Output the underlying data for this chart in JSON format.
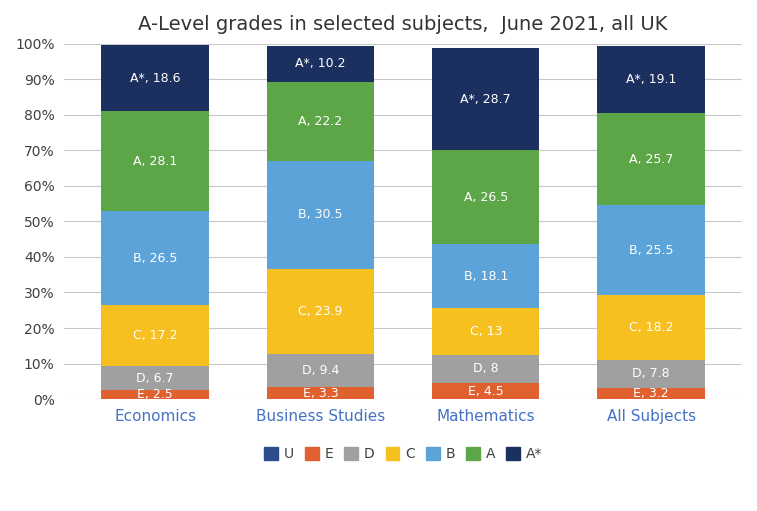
{
  "title": "A-Level grades in selected subjects,  June 2021, all UK",
  "categories": [
    "Economics",
    "Business Studies",
    "Mathematics",
    "All Subjects"
  ],
  "grades": [
    "U",
    "E",
    "D",
    "C",
    "B",
    "A",
    "A*"
  ],
  "values": {
    "U": [
      0.0,
      0.0,
      0.0,
      0.0
    ],
    "E": [
      2.5,
      3.3,
      4.5,
      3.2
    ],
    "D": [
      6.7,
      9.4,
      8.0,
      7.8
    ],
    "C": [
      17.2,
      23.9,
      13.0,
      18.2
    ],
    "B": [
      26.5,
      30.5,
      18.1,
      25.5
    ],
    "A": [
      28.1,
      22.2,
      26.5,
      25.7
    ],
    "A*": [
      18.6,
      10.2,
      28.7,
      19.1
    ]
  },
  "labels": {
    "U": [
      "",
      "",
      "",
      ""
    ],
    "E": [
      "E, 2.5",
      "E, 3.3",
      "E, 4.5",
      "E, 3.2"
    ],
    "D": [
      "D, 6.7",
      "D, 9.4",
      "D, 8",
      "D, 7.8"
    ],
    "C": [
      "C, 17.2",
      "C, 23.9",
      "C, 13",
      "C, 18.2"
    ],
    "B": [
      "B, 26.5",
      "B, 30.5",
      "B, 18.1",
      "B, 25.5"
    ],
    "A": [
      "A, 28.1",
      "A, 22.2",
      "A, 26.5",
      "A, 25.7"
    ],
    "A*": [
      "A*, 18.6",
      "A*, 10.2",
      "A*, 28.7",
      "A*, 19.1"
    ]
  },
  "colors": {
    "U": "#2E4B8C",
    "E": "#E06030",
    "D": "#A0A0A0",
    "C": "#F5C020",
    "B": "#5BA3D9",
    "A": "#5CA647",
    "A*": "#1C3060"
  },
  "bar_width": 0.65,
  "ylim": [
    0,
    100
  ],
  "yticks": [
    0,
    10,
    20,
    30,
    40,
    50,
    60,
    70,
    80,
    90,
    100
  ],
  "ytick_labels": [
    "0%",
    "10%",
    "20%",
    "30%",
    "40%",
    "50%",
    "60%",
    "70%",
    "80%",
    "90%",
    "100%"
  ],
  "label_color": "white",
  "label_fontsize": 9,
  "title_fontsize": 14,
  "background_color": "#FFFFFF",
  "grid_color": "#C8C8C8",
  "xticklabel_color": "#4472C4",
  "yticklabel_color": "#404040"
}
